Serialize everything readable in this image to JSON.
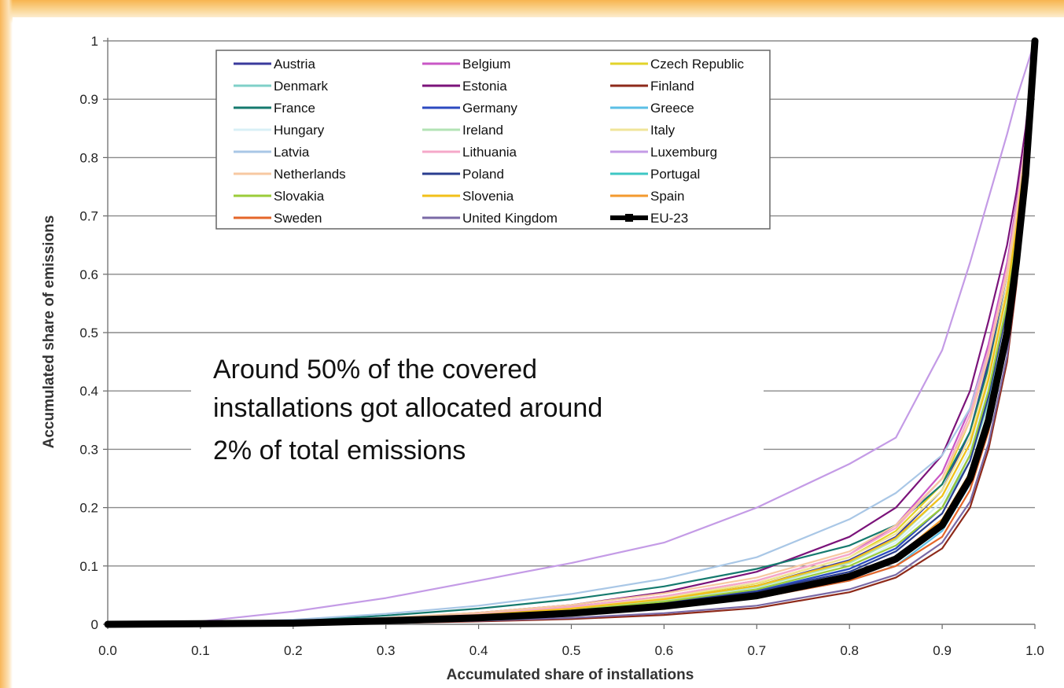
{
  "chart_data": {
    "type": "line",
    "title": "",
    "xlabel": "Accumulated share of installations",
    "ylabel": "Accumulated share of emissions",
    "xlim": [
      0.0,
      1.0
    ],
    "ylim": [
      0,
      1
    ],
    "x_ticks": [
      "0.0",
      "0.1",
      "0.2",
      "0.3",
      "0.4",
      "0.5",
      "0.6",
      "0.7",
      "0.8",
      "0.9",
      "1.0"
    ],
    "y_ticks": [
      "0",
      "0.1",
      "0.2",
      "0.3",
      "0.4",
      "0.5",
      "0.6",
      "0.7",
      "0.8",
      "0.9",
      "1"
    ],
    "grid": "horizontal",
    "legend_position": "top-left, three columns",
    "annotation": "Around 50% of the covered installations got allocated around 2% of total emissions",
    "annotation_lines": [
      "Around 50% of the covered",
      "installations got allocated around",
      "2% of total emissions"
    ],
    "x": [
      0.0,
      0.1,
      0.2,
      0.3,
      0.4,
      0.5,
      0.6,
      0.7,
      0.8,
      0.85,
      0.9,
      0.93,
      0.95,
      0.97,
      0.98,
      0.99,
      1.0
    ],
    "series": [
      {
        "name": "Austria",
        "color": "#3a3a9c",
        "values": [
          0,
          0.001,
          0.004,
          0.009,
          0.016,
          0.027,
          0.043,
          0.066,
          0.11,
          0.15,
          0.23,
          0.33,
          0.45,
          0.6,
          0.7,
          0.82,
          1.0
        ]
      },
      {
        "name": "Belgium",
        "color": "#c957c6",
        "values": [
          0,
          0.001,
          0.004,
          0.01,
          0.018,
          0.03,
          0.048,
          0.075,
          0.12,
          0.17,
          0.26,
          0.37,
          0.48,
          0.62,
          0.72,
          0.84,
          1.0
        ]
      },
      {
        "name": "Czech Republic",
        "color": "#e2d32a",
        "values": [
          0,
          0.001,
          0.004,
          0.009,
          0.017,
          0.028,
          0.045,
          0.07,
          0.115,
          0.16,
          0.24,
          0.35,
          0.46,
          0.61,
          0.71,
          0.83,
          1.0
        ]
      },
      {
        "name": "Denmark",
        "color": "#7fd0c8",
        "values": [
          0,
          0.001,
          0.003,
          0.008,
          0.014,
          0.024,
          0.038,
          0.058,
          0.095,
          0.13,
          0.2,
          0.28,
          0.38,
          0.52,
          0.64,
          0.78,
          1.0
        ]
      },
      {
        "name": "Estonia",
        "color": "#7b137a",
        "values": [
          0,
          0.001,
          0.004,
          0.01,
          0.02,
          0.033,
          0.055,
          0.09,
          0.15,
          0.2,
          0.29,
          0.4,
          0.52,
          0.65,
          0.74,
          0.85,
          1.0
        ]
      },
      {
        "name": "Finland",
        "color": "#8e2a1a",
        "values": [
          0,
          0.0,
          0.001,
          0.002,
          0.005,
          0.009,
          0.016,
          0.028,
          0.055,
          0.08,
          0.13,
          0.2,
          0.3,
          0.45,
          0.58,
          0.74,
          1.0
        ]
      },
      {
        "name": "France",
        "color": "#157a6e",
        "values": [
          0,
          0.001,
          0.006,
          0.015,
          0.027,
          0.043,
          0.065,
          0.095,
          0.135,
          0.17,
          0.24,
          0.33,
          0.44,
          0.58,
          0.68,
          0.8,
          1.0
        ]
      },
      {
        "name": "Germany",
        "color": "#2c4ac0",
        "values": [
          0,
          0.001,
          0.003,
          0.008,
          0.014,
          0.023,
          0.037,
          0.057,
          0.095,
          0.13,
          0.2,
          0.29,
          0.4,
          0.55,
          0.66,
          0.8,
          1.0
        ]
      },
      {
        "name": "Greece",
        "color": "#5bbfe6",
        "values": [
          0,
          0.0,
          0.002,
          0.005,
          0.01,
          0.017,
          0.028,
          0.045,
          0.075,
          0.1,
          0.16,
          0.24,
          0.34,
          0.5,
          0.62,
          0.77,
          1.0
        ]
      },
      {
        "name": "Hungary",
        "color": "#d8f0f6",
        "values": [
          0,
          0.001,
          0.003,
          0.008,
          0.015,
          0.025,
          0.04,
          0.062,
          0.1,
          0.14,
          0.21,
          0.3,
          0.41,
          0.56,
          0.67,
          0.8,
          1.0
        ]
      },
      {
        "name": "Ireland",
        "color": "#b3e3b5",
        "values": [
          0,
          0.001,
          0.004,
          0.009,
          0.016,
          0.026,
          0.042,
          0.064,
          0.105,
          0.145,
          0.22,
          0.31,
          0.42,
          0.57,
          0.68,
          0.81,
          1.0
        ]
      },
      {
        "name": "Italy",
        "color": "#f0e59a",
        "values": [
          0,
          0.001,
          0.004,
          0.01,
          0.018,
          0.029,
          0.046,
          0.071,
          0.115,
          0.155,
          0.23,
          0.32,
          0.43,
          0.58,
          0.69,
          0.82,
          1.0
        ]
      },
      {
        "name": "Latvia",
        "color": "#a9c7e6",
        "values": [
          0,
          0.002,
          0.008,
          0.018,
          0.032,
          0.052,
          0.078,
          0.115,
          0.18,
          0.225,
          0.29,
          0.37,
          0.47,
          0.61,
          0.71,
          0.83,
          1.0
        ]
      },
      {
        "name": "Lithuania",
        "color": "#f5a8c9",
        "values": [
          0,
          0.001,
          0.004,
          0.01,
          0.018,
          0.03,
          0.048,
          0.075,
          0.12,
          0.165,
          0.25,
          0.36,
          0.47,
          0.61,
          0.71,
          0.83,
          1.0
        ]
      },
      {
        "name": "Luxemburg",
        "color": "#c49be6",
        "values": [
          0,
          0.005,
          0.022,
          0.045,
          0.075,
          0.105,
          0.14,
          0.2,
          0.275,
          0.32,
          0.47,
          0.62,
          0.73,
          0.84,
          0.9,
          0.95,
          1.0
        ]
      },
      {
        "name": "Netherlands",
        "color": "#f7c9a2",
        "values": [
          0,
          0.001,
          0.004,
          0.011,
          0.02,
          0.033,
          0.053,
          0.08,
          0.125,
          0.17,
          0.25,
          0.35,
          0.46,
          0.6,
          0.7,
          0.82,
          1.0
        ]
      },
      {
        "name": "Poland",
        "color": "#2a3d8f",
        "values": [
          0,
          0.001,
          0.003,
          0.007,
          0.013,
          0.022,
          0.036,
          0.056,
          0.09,
          0.125,
          0.19,
          0.28,
          0.39,
          0.54,
          0.65,
          0.79,
          1.0
        ]
      },
      {
        "name": "Portugal",
        "color": "#3ec7c4",
        "values": [
          0,
          0.0,
          0.002,
          0.005,
          0.01,
          0.018,
          0.03,
          0.048,
          0.08,
          0.11,
          0.17,
          0.25,
          0.35,
          0.5,
          0.62,
          0.77,
          1.0
        ]
      },
      {
        "name": "Slovakia",
        "color": "#9bcc3a",
        "values": [
          0,
          0.001,
          0.003,
          0.008,
          0.014,
          0.024,
          0.039,
          0.06,
          0.1,
          0.135,
          0.2,
          0.29,
          0.4,
          0.55,
          0.66,
          0.8,
          1.0
        ]
      },
      {
        "name": "Slovenia",
        "color": "#f2c019",
        "values": [
          0,
          0.001,
          0.004,
          0.009,
          0.016,
          0.027,
          0.043,
          0.066,
          0.108,
          0.148,
          0.22,
          0.31,
          0.42,
          0.57,
          0.68,
          0.81,
          1.0
        ]
      },
      {
        "name": "Spain",
        "color": "#f39a2e",
        "values": [
          0,
          0.0,
          0.002,
          0.005,
          0.011,
          0.019,
          0.031,
          0.05,
          0.085,
          0.115,
          0.18,
          0.26,
          0.36,
          0.51,
          0.63,
          0.78,
          1.0
        ]
      },
      {
        "name": "Sweden",
        "color": "#e5662a",
        "values": [
          0,
          0.0,
          0.002,
          0.005,
          0.01,
          0.017,
          0.028,
          0.045,
          0.075,
          0.1,
          0.15,
          0.23,
          0.33,
          0.48,
          0.6,
          0.76,
          1.0
        ]
      },
      {
        "name": "United Kingdom",
        "color": "#7a6aa6",
        "values": [
          0,
          0.0,
          0.001,
          0.003,
          0.006,
          0.011,
          0.019,
          0.032,
          0.06,
          0.085,
          0.14,
          0.21,
          0.31,
          0.46,
          0.59,
          0.75,
          1.0
        ]
      },
      {
        "name": "EU-23",
        "color": "#000000",
        "emphasis": true,
        "values": [
          0,
          0.001,
          0.002,
          0.006,
          0.011,
          0.019,
          0.031,
          0.049,
          0.082,
          0.112,
          0.17,
          0.25,
          0.35,
          0.5,
          0.62,
          0.77,
          1.0
        ]
      }
    ]
  }
}
